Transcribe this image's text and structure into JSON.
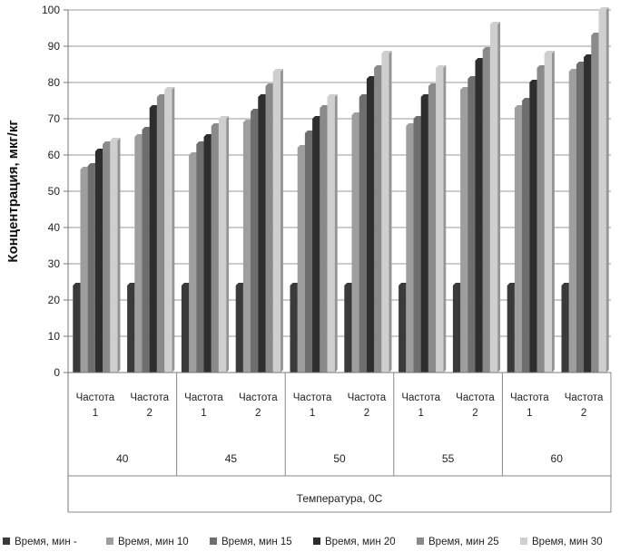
{
  "chart_data": {
    "type": "bar",
    "title": "",
    "ylabel": "Концентрация, мкг/кг",
    "xlabel": "Температура, 0С",
    "ylim": [
      0,
      100
    ],
    "yticks": [
      0,
      10,
      20,
      30,
      40,
      50,
      60,
      70,
      80,
      90,
      100
    ],
    "grid": true,
    "legend_position": "bottom",
    "groups": [
      {
        "label": "40",
        "categories": [
          [
            "Частота",
            "1"
          ],
          [
            "Частота",
            "2"
          ]
        ]
      },
      {
        "label": "45",
        "categories": [
          [
            "Частота",
            "1"
          ],
          [
            "Частота",
            "2"
          ]
        ]
      },
      {
        "label": "50",
        "categories": [
          [
            "Частота",
            "1"
          ],
          [
            "Частота",
            "2"
          ]
        ]
      },
      {
        "label": "55",
        "categories": [
          [
            "Частота",
            "1"
          ],
          [
            "Частота",
            "2"
          ]
        ]
      },
      {
        "label": "60",
        "categories": [
          [
            "Частота",
            "1"
          ],
          [
            "Частота",
            "2"
          ]
        ]
      }
    ],
    "series": [
      {
        "name": "Время, мин -",
        "color": "#3a3a3a",
        "values": [
          24,
          24,
          24,
          24,
          24,
          24,
          24,
          24,
          24,
          24
        ]
      },
      {
        "name": "Время, мин 10",
        "color": "#9e9e9e",
        "values": [
          56,
          65,
          60,
          69,
          62,
          71,
          68,
          78,
          73,
          83
        ]
      },
      {
        "name": "Время, мин 15",
        "color": "#6e6e6e",
        "values": [
          57,
          67,
          63,
          72,
          66,
          76,
          70,
          81,
          75,
          85
        ]
      },
      {
        "name": "Время, мин 20",
        "color": "#2e2e2e",
        "values": [
          61,
          73,
          65,
          76,
          70,
          81,
          76,
          86,
          80,
          87
        ]
      },
      {
        "name": "Время, мин 25",
        "color": "#8a8a8a",
        "values": [
          63,
          76,
          68,
          79,
          73,
          84,
          79,
          89,
          84,
          93
        ]
      },
      {
        "name": "Время, мин 30",
        "color": "#cfcfcf",
        "values": [
          64,
          78,
          70,
          83,
          76,
          88,
          84,
          96,
          88,
          100
        ]
      }
    ]
  }
}
